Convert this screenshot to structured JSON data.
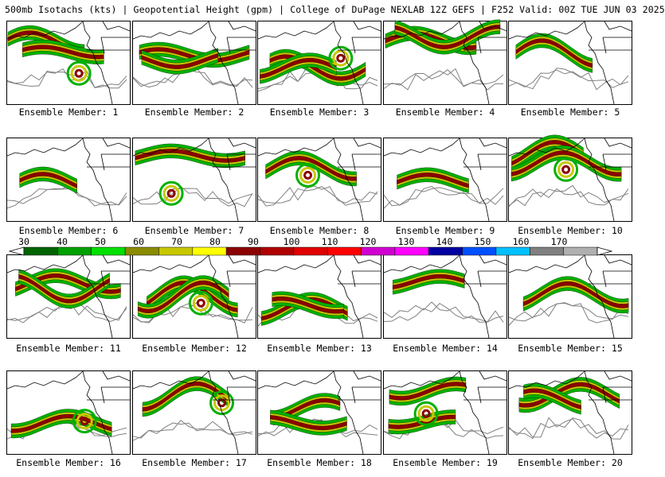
{
  "header": {
    "title": "500mb Isotachs (kts) | Geopotential Height (gpm) | College of DuPage NEXLAB    12Z GEFS | F252 Valid: 00Z TUE JUN 03 2025"
  },
  "panels": [
    {
      "label": "Ensemble Member: 1"
    },
    {
      "label": "Ensemble Member: 2"
    },
    {
      "label": "Ensemble Member: 3"
    },
    {
      "label": "Ensemble Member: 4"
    },
    {
      "label": "Ensemble Member: 5"
    },
    {
      "label": "Ensemble Member: 6"
    },
    {
      "label": "Ensemble Member: 7"
    },
    {
      "label": "Ensemble Member: 8"
    },
    {
      "label": "Ensemble Member: 9"
    },
    {
      "label": "Ensemble Member: 10"
    },
    {
      "label": "Ensemble Member: 11"
    },
    {
      "label": "Ensemble Member: 12"
    },
    {
      "label": "Ensemble Member: 13"
    },
    {
      "label": "Ensemble Member: 14"
    },
    {
      "label": "Ensemble Member: 15"
    },
    {
      "label": "Ensemble Member: 16"
    },
    {
      "label": "Ensemble Member: 17"
    },
    {
      "label": "Ensemble Member: 18"
    },
    {
      "label": "Ensemble Member: 19"
    },
    {
      "label": "Ensemble Member: 20"
    }
  ],
  "colorbar": {
    "labels": [
      "30",
      "40",
      "50",
      "60",
      "70",
      "80",
      "90",
      "100",
      "110",
      "120",
      "130",
      "140",
      "150",
      "160",
      "170"
    ],
    "colors": [
      "#006400",
      "#00a000",
      "#00e000",
      "#8b8b00",
      "#c8c800",
      "#ffff00",
      "#8b0000",
      "#b00000",
      "#e00000",
      "#ff0000",
      "#d000d0",
      "#ff00ff",
      "#0000a0",
      "#0050ff",
      "#00c0ff",
      "#808080",
      "#b0b0b0"
    ]
  },
  "map_colors": {
    "coast": "#000000",
    "height_contour": "#808080",
    "isotach_outline": "#000000",
    "jet_slow": "#00b000",
    "jet_mid": "#c8c800",
    "jet_core": "#8b0000"
  }
}
